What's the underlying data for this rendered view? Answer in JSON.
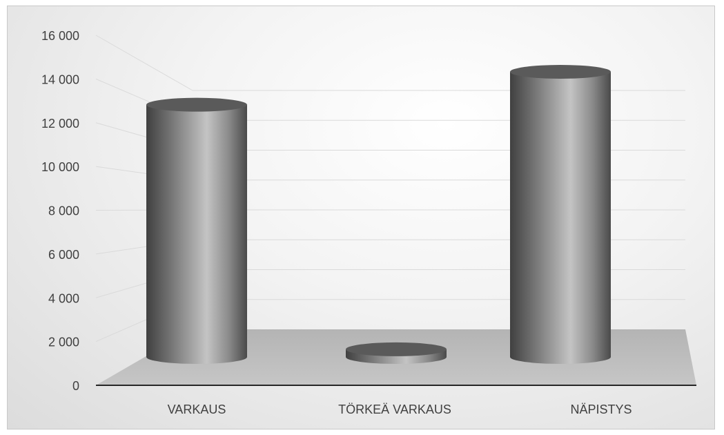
{
  "chart_data": {
    "type": "bar",
    "style": "3d-cylinder",
    "categories": [
      "VARKAUS",
      "TÖRKEÄ VARKAUS",
      "NÄPISTYS"
    ],
    "values": [
      11500,
      350,
      13000
    ],
    "ylim": [
      0,
      16000
    ],
    "yticks": [
      0,
      2000,
      4000,
      6000,
      8000,
      10000,
      12000,
      14000,
      16000
    ],
    "ytick_labels": [
      "0",
      "2 000",
      "4 000",
      "6 000",
      "8 000",
      "10 000",
      "12 000",
      "14 000",
      "16 000"
    ],
    "title": "",
    "xlabel": "",
    "ylabel": "",
    "grid": true,
    "legend": "none",
    "colors": {
      "bar_dark": "#3e3e3e",
      "bar_light": "#bdbdbd",
      "bar_top": "#5a5a5a",
      "floor": "#bfbfbf",
      "gridline": "#dadada",
      "axis": "#262626"
    }
  }
}
